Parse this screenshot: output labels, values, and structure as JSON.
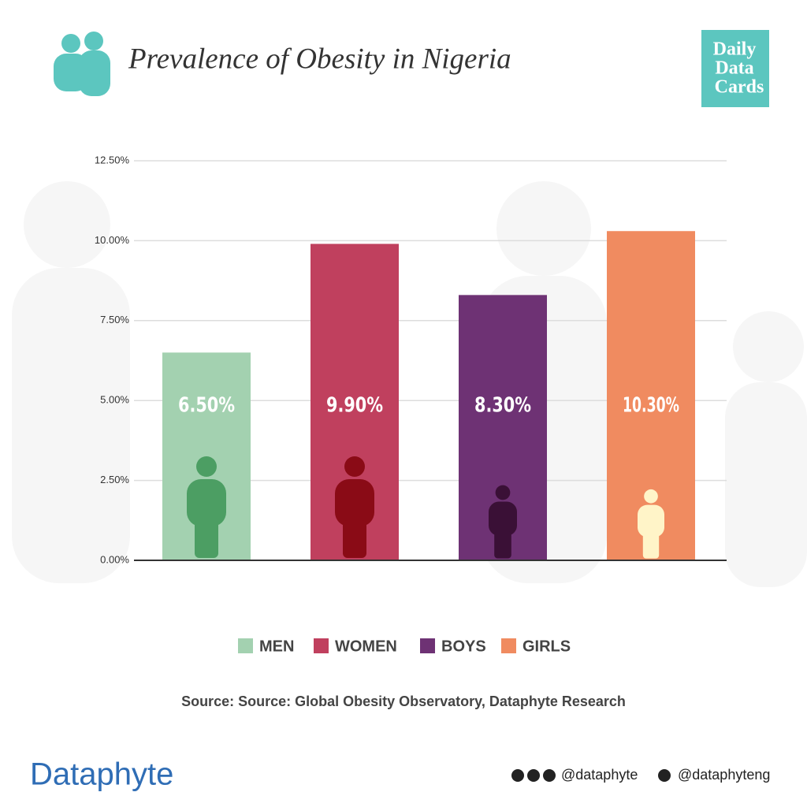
{
  "chart_data": {
    "type": "bar",
    "title": "Prevalence of Obesity in Nigeria",
    "categories": [
      "MEN",
      "WOMEN",
      "BOYS",
      "GIRLS"
    ],
    "values": [
      6.5,
      9.9,
      8.3,
      10.3
    ],
    "value_labels": [
      "6.50%",
      "9.90%",
      "8.30%",
      "10.30%"
    ],
    "colors": [
      "#a3d1b0",
      "#c0405e",
      "#6e3274",
      "#f08b60"
    ],
    "icon_colors": [
      "#4c9e63",
      "#8a0b16",
      "#3a1036",
      "#fff4c8"
    ],
    "ylim": [
      0,
      12.5
    ],
    "yticks": [
      {
        "value": 0,
        "label": "0.00%"
      },
      {
        "value": 2.5,
        "label": "2.50%"
      },
      {
        "value": 5,
        "label": "5.00%"
      },
      {
        "value": 7.5,
        "label": "7.50%"
      },
      {
        "value": 10,
        "label": "10.00%"
      },
      {
        "value": 12.5,
        "label": "12.50%"
      }
    ],
    "grid": true,
    "source": "Source: Source: Global Obesity Observatory, Dataphyte Research"
  },
  "branding": {
    "badge": [
      "Daily",
      "Data",
      "Cards"
    ],
    "logo": "Dataphyte",
    "social": [
      "@dataphyte",
      "@dataphyteng"
    ]
  }
}
